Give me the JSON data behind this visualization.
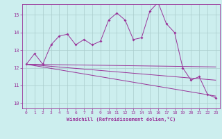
{
  "xlabel": "Windchill (Refroidissement éolien,°C)",
  "background_color": "#cceeee",
  "line_color": "#993399",
  "xlim": [
    -0.5,
    23.5
  ],
  "ylim": [
    9.7,
    15.6
  ],
  "yticks": [
    10,
    11,
    12,
    13,
    14,
    15
  ],
  "xticks": [
    0,
    1,
    2,
    3,
    4,
    5,
    6,
    7,
    8,
    9,
    10,
    11,
    12,
    13,
    14,
    15,
    16,
    17,
    18,
    19,
    20,
    21,
    22,
    23
  ],
  "main_x": [
    0,
    1,
    2,
    3,
    4,
    5,
    6,
    7,
    8,
    9,
    10,
    11,
    12,
    13,
    14,
    15,
    16,
    17,
    18,
    19,
    20,
    21,
    22,
    23
  ],
  "main_y": [
    12.2,
    12.8,
    12.2,
    13.3,
    13.8,
    13.9,
    13.3,
    13.6,
    13.3,
    13.5,
    14.7,
    15.1,
    14.7,
    13.6,
    13.7,
    15.2,
    15.7,
    14.5,
    14.0,
    12.0,
    11.3,
    11.5,
    10.5,
    10.3
  ],
  "trend1_x": [
    0,
    23
  ],
  "trend1_y": [
    12.2,
    12.05
  ],
  "trend2_x": [
    0,
    23
  ],
  "trend2_y": [
    12.2,
    11.3
  ],
  "trend3_x": [
    0,
    23
  ],
  "trend3_y": [
    12.2,
    10.4
  ]
}
